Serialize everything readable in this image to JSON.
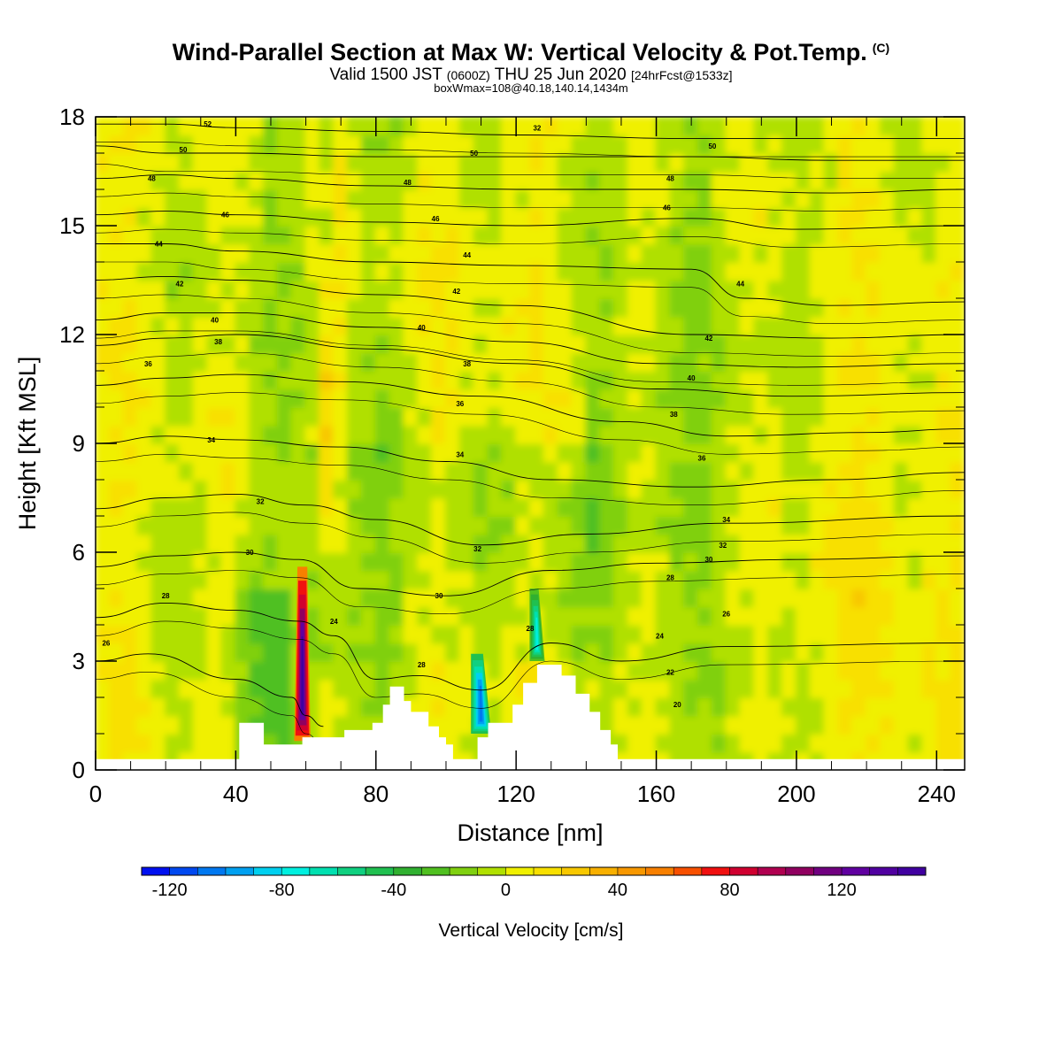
{
  "header": {
    "title": "Wind-Parallel Section at Max W: Vertical Velocity & Pot.Temp.",
    "title_mark": "(C)",
    "valid_prefix": "Valid 1500 JST",
    "valid_utc": "(0600Z)",
    "valid_date": "THU 25 Jun 2020",
    "forecast": "[24hrFcst@1533z]",
    "box_info": "boxWmax=108@40.18,140.14,1434m"
  },
  "chart_data": {
    "type": "heatmap",
    "xlabel": "Distance [nm]",
    "ylabel": "Height [Kft MSL]",
    "xlim": [
      0,
      248
    ],
    "ylim": [
      0,
      18
    ],
    "xticks": [
      0,
      40,
      80,
      120,
      160,
      200,
      240
    ],
    "yticks": [
      0,
      3,
      6,
      9,
      12,
      15,
      18
    ],
    "terrain": [
      [
        0,
        0.3
      ],
      [
        40,
        0.3
      ],
      [
        41,
        1.3
      ],
      [
        45,
        1.3
      ],
      [
        48,
        0.7
      ],
      [
        56,
        0.7
      ],
      [
        59,
        0.9
      ],
      [
        68,
        0.9
      ],
      [
        71,
        1.1
      ],
      [
        76,
        1.1
      ],
      [
        79,
        1.3
      ],
      [
        82,
        1.8
      ],
      [
        84,
        2.3
      ],
      [
        86,
        2.3
      ],
      [
        88,
        1.9
      ],
      [
        90,
        1.6
      ],
      [
        93,
        1.6
      ],
      [
        95,
        1.2
      ],
      [
        98,
        0.9
      ],
      [
        100,
        0.7
      ],
      [
        102,
        0.3
      ],
      [
        106,
        0.3
      ],
      [
        109,
        0.9
      ],
      [
        112,
        1.3
      ],
      [
        116,
        1.3
      ],
      [
        119,
        1.8
      ],
      [
        122,
        2.4
      ],
      [
        126,
        2.9
      ],
      [
        130,
        2.9
      ],
      [
        133,
        2.6
      ],
      [
        137,
        2.1
      ],
      [
        141,
        1.6
      ],
      [
        144,
        1.1
      ],
      [
        147,
        0.7
      ],
      [
        149,
        0.3
      ],
      [
        248,
        0.3
      ]
    ],
    "colorbar": {
      "title": "Vertical Velocity [cm/s]",
      "ticks": [
        -120,
        -80,
        -40,
        0,
        40,
        80,
        120
      ],
      "min": -130,
      "max": 150,
      "step": 10,
      "colors": [
        "#0010f0",
        "#0048f0",
        "#0078f0",
        "#00a0f0",
        "#00d0f0",
        "#00f0e0",
        "#00e0b0",
        "#10d080",
        "#20c050",
        "#30b030",
        "#50c020",
        "#80d010",
        "#b0e000",
        "#f0f000",
        "#f8e000",
        "#f8c800",
        "#f8b000",
        "#f89800",
        "#f88000",
        "#f85000",
        "#f01010",
        "#d00030",
        "#b00050",
        "#900060",
        "#700080",
        "#6000a0",
        "#5000a0",
        "#4000a0"
      ]
    },
    "isotherms": [
      {
        "label": "26",
        "points": [
          [
            0,
            3.0
          ],
          [
            15,
            3.2
          ],
          [
            40,
            2.5
          ],
          [
            56,
            2.0
          ],
          [
            60,
            1.5
          ],
          [
            65,
            1.2
          ]
        ]
      },
      {
        "label": "28",
        "points": [
          [
            0,
            4.2
          ],
          [
            20,
            4.6
          ],
          [
            40,
            4.4
          ],
          [
            58,
            4.1
          ],
          [
            68,
            3.7
          ],
          [
            80,
            2.5
          ],
          [
            92,
            2.6
          ],
          [
            110,
            2.2
          ],
          [
            130,
            3.5
          ],
          [
            150,
            3.0
          ],
          [
            180,
            3.4
          ],
          [
            248,
            3.5
          ]
        ]
      },
      {
        "label": "30",
        "points": [
          [
            0,
            5.6
          ],
          [
            20,
            5.9
          ],
          [
            40,
            6.0
          ],
          [
            58,
            5.8
          ],
          [
            75,
            5.0
          ],
          [
            100,
            4.8
          ],
          [
            130,
            5.5
          ],
          [
            160,
            5.7
          ],
          [
            200,
            5.8
          ],
          [
            248,
            5.9
          ]
        ]
      },
      {
        "label": "32",
        "points": [
          [
            0,
            7.2
          ],
          [
            20,
            7.5
          ],
          [
            40,
            7.6
          ],
          [
            60,
            7.3
          ],
          [
            80,
            6.9
          ],
          [
            110,
            6.2
          ],
          [
            140,
            6.5
          ],
          [
            180,
            6.8
          ],
          [
            248,
            7.0
          ]
        ]
      },
      {
        "label": "34",
        "points": [
          [
            0,
            9.0
          ],
          [
            20,
            9.2
          ],
          [
            40,
            9.1
          ],
          [
            70,
            8.9
          ],
          [
            100,
            8.5
          ],
          [
            130,
            8.0
          ],
          [
            170,
            7.8
          ],
          [
            210,
            8.0
          ],
          [
            248,
            8.2
          ]
        ]
      },
      {
        "label": "36",
        "points": [
          [
            0,
            10.6
          ],
          [
            20,
            10.8
          ],
          [
            40,
            10.9
          ],
          [
            70,
            10.7
          ],
          [
            110,
            10.3
          ],
          [
            150,
            9.6
          ],
          [
            180,
            9.2
          ],
          [
            220,
            9.3
          ],
          [
            248,
            9.4
          ]
        ]
      },
      {
        "label": "38",
        "points": [
          [
            0,
            11.7
          ],
          [
            20,
            11.9
          ],
          [
            40,
            12.0
          ],
          [
            80,
            11.6
          ],
          [
            120,
            11.2
          ],
          [
            160,
            10.5
          ],
          [
            200,
            10.3
          ],
          [
            248,
            10.4
          ]
        ]
      },
      {
        "label": "40",
        "points": [
          [
            0,
            12.4
          ],
          [
            20,
            12.6
          ],
          [
            40,
            12.6
          ],
          [
            80,
            12.2
          ],
          [
            120,
            11.8
          ],
          [
            160,
            11.2
          ],
          [
            200,
            11.1
          ],
          [
            248,
            11.2
          ]
        ]
      },
      {
        "label": "42",
        "points": [
          [
            0,
            13.5
          ],
          [
            20,
            13.6
          ],
          [
            40,
            13.5
          ],
          [
            80,
            13.1
          ],
          [
            120,
            12.8
          ],
          [
            170,
            12.0
          ],
          [
            210,
            11.9
          ],
          [
            248,
            12.0
          ]
        ]
      },
      {
        "label": "44",
        "points": [
          [
            0,
            14.5
          ],
          [
            20,
            14.5
          ],
          [
            40,
            14.3
          ],
          [
            80,
            14.0
          ],
          [
            120,
            13.9
          ],
          [
            170,
            13.8
          ],
          [
            185,
            13.0
          ],
          [
            210,
            12.8
          ],
          [
            248,
            12.9
          ]
        ]
      },
      {
        "label": "46",
        "points": [
          [
            0,
            15.3
          ],
          [
            20,
            15.4
          ],
          [
            40,
            15.3
          ],
          [
            80,
            15.1
          ],
          [
            120,
            15.0
          ],
          [
            170,
            15.2
          ],
          [
            200,
            14.9
          ],
          [
            248,
            15.0
          ]
        ]
      },
      {
        "label": "48",
        "points": [
          [
            0,
            16.3
          ],
          [
            20,
            16.4
          ],
          [
            40,
            16.3
          ],
          [
            80,
            16.1
          ],
          [
            120,
            16.0
          ],
          [
            170,
            16.0
          ],
          [
            210,
            15.9
          ],
          [
            248,
            16.0
          ]
        ]
      },
      {
        "label": "50",
        "points": [
          [
            0,
            17.2
          ],
          [
            20,
            17.0
          ],
          [
            40,
            17.0
          ],
          [
            80,
            16.9
          ],
          [
            120,
            16.9
          ],
          [
            170,
            16.9
          ],
          [
            210,
            16.8
          ],
          [
            248,
            16.8
          ]
        ]
      },
      {
        "label": "52",
        "points": [
          [
            0,
            17.8
          ],
          [
            20,
            17.8
          ],
          [
            40,
            17.7
          ],
          [
            80,
            17.6
          ],
          [
            120,
            17.5
          ],
          [
            170,
            17.4
          ],
          [
            210,
            17.4
          ],
          [
            248,
            17.4
          ]
        ]
      }
    ],
    "contour_labels": [
      {
        "text": "52",
        "x": 32,
        "y": 17.8
      },
      {
        "text": "50",
        "x": 25,
        "y": 17.1
      },
      {
        "text": "48",
        "x": 16,
        "y": 16.3
      },
      {
        "text": "46",
        "x": 37,
        "y": 15.3
      },
      {
        "text": "44",
        "x": 18,
        "y": 14.5
      },
      {
        "text": "42",
        "x": 24,
        "y": 13.4
      },
      {
        "text": "40",
        "x": 34,
        "y": 12.4
      },
      {
        "text": "38",
        "x": 35,
        "y": 11.8
      },
      {
        "text": "36",
        "x": 15,
        "y": 11.2
      },
      {
        "text": "34",
        "x": 33,
        "y": 9.1
      },
      {
        "text": "32",
        "x": 47,
        "y": 7.4
      },
      {
        "text": "30",
        "x": 44,
        "y": 6.0
      },
      {
        "text": "28",
        "x": 20,
        "y": 4.8
      },
      {
        "text": "26",
        "x": 3,
        "y": 3.5
      },
      {
        "text": "24",
        "x": 68,
        "y": 4.1
      },
      {
        "text": "50",
        "x": 108,
        "y": 17.0
      },
      {
        "text": "48",
        "x": 89,
        "y": 16.2
      },
      {
        "text": "46",
        "x": 97,
        "y": 15.2
      },
      {
        "text": "44",
        "x": 106,
        "y": 14.2
      },
      {
        "text": "42",
        "x": 103,
        "y": 13.2
      },
      {
        "text": "40",
        "x": 93,
        "y": 12.2
      },
      {
        "text": "38",
        "x": 106,
        "y": 11.2
      },
      {
        "text": "36",
        "x": 104,
        "y": 10.1
      },
      {
        "text": "34",
        "x": 104,
        "y": 8.7
      },
      {
        "text": "32",
        "x": 109,
        "y": 6.1
      },
      {
        "text": "30",
        "x": 98,
        "y": 4.8
      },
      {
        "text": "28",
        "x": 93,
        "y": 2.9
      },
      {
        "text": "28",
        "x": 124,
        "y": 3.9
      },
      {
        "text": "32",
        "x": 126,
        "y": 17.7
      },
      {
        "text": "50",
        "x": 176,
        "y": 17.2
      },
      {
        "text": "48",
        "x": 164,
        "y": 16.3
      },
      {
        "text": "46",
        "x": 163,
        "y": 15.5
      },
      {
        "text": "44",
        "x": 184,
        "y": 13.4
      },
      {
        "text": "42",
        "x": 175,
        "y": 11.9
      },
      {
        "text": "40",
        "x": 170,
        "y": 10.8
      },
      {
        "text": "38",
        "x": 165,
        "y": 9.8
      },
      {
        "text": "36",
        "x": 173,
        "y": 8.6
      },
      {
        "text": "34",
        "x": 180,
        "y": 6.9
      },
      {
        "text": "32",
        "x": 179,
        "y": 6.2
      },
      {
        "text": "30",
        "x": 175,
        "y": 5.8
      },
      {
        "text": "28",
        "x": 164,
        "y": 5.3
      },
      {
        "text": "26",
        "x": 180,
        "y": 4.3
      },
      {
        "text": "24",
        "x": 161,
        "y": 3.7
      },
      {
        "text": "22",
        "x": 164,
        "y": 2.7
      },
      {
        "text": "20",
        "x": 166,
        "y": 1.8
      }
    ],
    "features": [
      {
        "kind": "updraft",
        "x": 59,
        "y0": 0.8,
        "y1": 5.6,
        "w": 1.3,
        "peak": 140
      },
      {
        "kind": "downdraft",
        "x": 110,
        "y0": 1.0,
        "y1": 3.2,
        "w": 1.6,
        "peak": -110
      },
      {
        "kind": "downdraft",
        "x": 126,
        "y0": 3.0,
        "y1": 5.0,
        "w": 1.2,
        "peak": -80
      }
    ]
  }
}
